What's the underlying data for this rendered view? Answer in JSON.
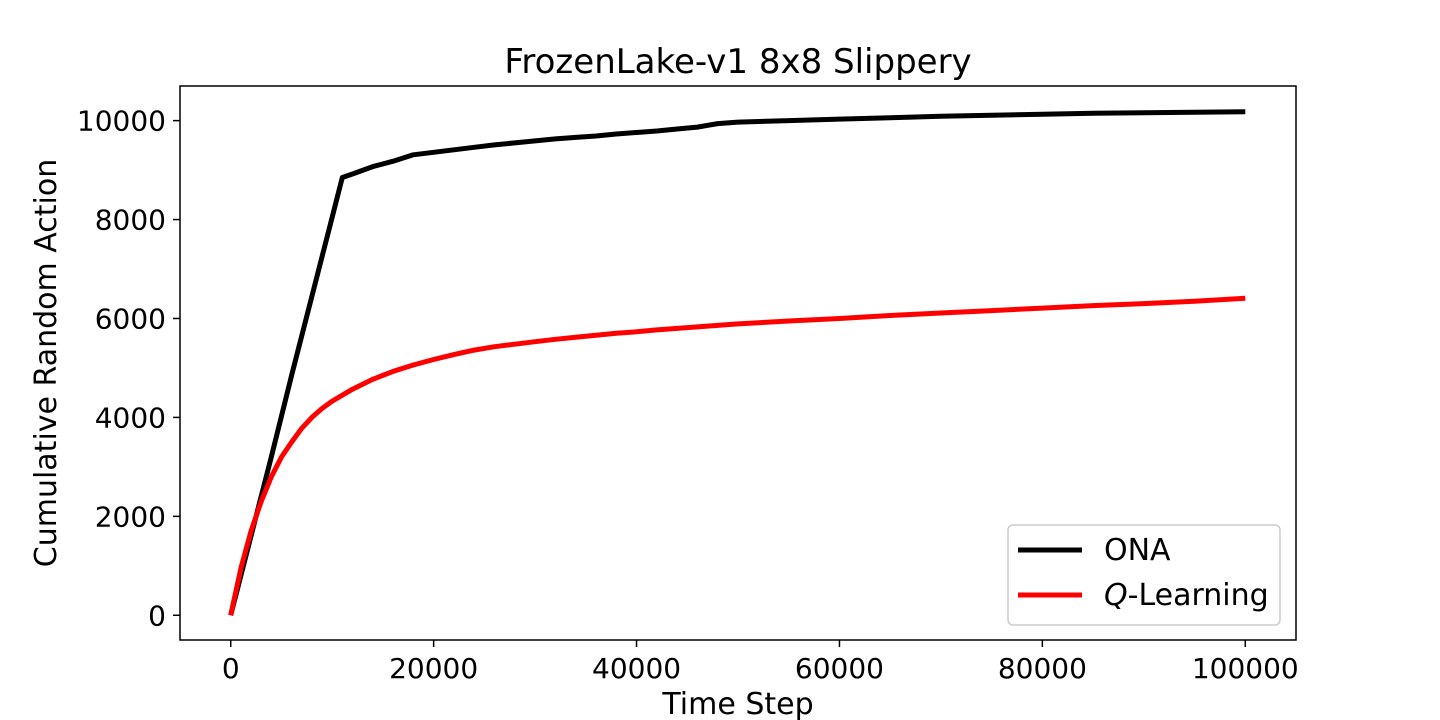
{
  "chart_data": {
    "type": "line",
    "title": "FrozenLake-v1 8x8 Slippery",
    "xlabel": "Time Step",
    "ylabel": "Cumulative Random Action",
    "xlim": [
      -5000,
      105000
    ],
    "ylim": [
      -500,
      10700
    ],
    "xticks": [
      0,
      20000,
      40000,
      60000,
      80000,
      100000
    ],
    "yticks": [
      0,
      2000,
      4000,
      6000,
      8000,
      10000
    ],
    "grid": false,
    "legend_position": "lower-right",
    "series": [
      {
        "name": "ONA",
        "name_prefix": "",
        "name_suffix": "",
        "color": "#000000",
        "x": [
          0,
          2000,
          4000,
          6000,
          8000,
          10000,
          11000,
          12000,
          14000,
          16000,
          18000,
          20000,
          22000,
          24000,
          26000,
          28000,
          30000,
          32000,
          34000,
          36000,
          38000,
          40000,
          42000,
          44000,
          46000,
          48000,
          50000,
          55000,
          60000,
          65000,
          70000,
          75000,
          80000,
          85000,
          90000,
          95000,
          100000
        ],
        "y": [
          0,
          1600,
          3200,
          4850,
          6450,
          8050,
          8850,
          8920,
          9070,
          9180,
          9310,
          9360,
          9410,
          9460,
          9510,
          9550,
          9590,
          9630,
          9660,
          9690,
          9730,
          9760,
          9790,
          9830,
          9870,
          9940,
          9970,
          10000,
          10030,
          10060,
          10090,
          10110,
          10130,
          10150,
          10160,
          10170,
          10180
        ]
      },
      {
        "name": "Learning",
        "name_prefix": "Q",
        "name_suffix": "-",
        "color": "#ff0000",
        "x": [
          0,
          1000,
          2000,
          3000,
          4000,
          5000,
          6000,
          7000,
          8000,
          9000,
          10000,
          12000,
          14000,
          16000,
          18000,
          20000,
          22000,
          24000,
          26000,
          28000,
          30000,
          32000,
          34000,
          36000,
          38000,
          40000,
          42000,
          44000,
          46000,
          48000,
          50000,
          55000,
          60000,
          65000,
          70000,
          75000,
          80000,
          85000,
          90000,
          95000,
          100000
        ],
        "y": [
          0,
          950,
          1700,
          2300,
          2800,
          3200,
          3500,
          3780,
          4000,
          4180,
          4330,
          4570,
          4770,
          4930,
          5060,
          5170,
          5270,
          5360,
          5430,
          5480,
          5530,
          5580,
          5620,
          5660,
          5700,
          5730,
          5770,
          5800,
          5830,
          5860,
          5890,
          5950,
          6000,
          6060,
          6110,
          6160,
          6210,
          6260,
          6300,
          6350,
          6410
        ]
      }
    ]
  }
}
